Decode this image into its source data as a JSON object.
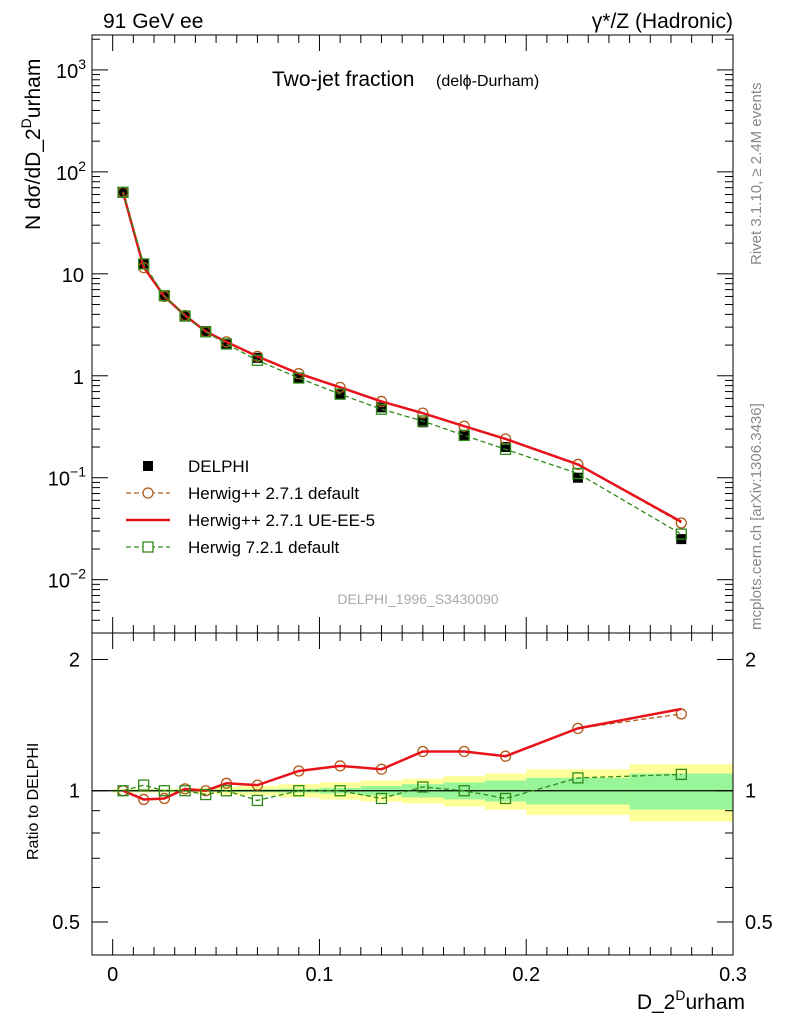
{
  "header": {
    "left_label": "91 GeV ee",
    "right_label": "γ*/Z (Hadronic)"
  },
  "side_labels": {
    "rivet": "Rivet 3.1.10, ≥ 2.4M events",
    "mcplots": "mcplots.cern.ch [arXiv:1306.3436]"
  },
  "chart_data": [
    {
      "type": "line",
      "title": "Two-jet fraction",
      "subtitle": "(delϕ-Durham)",
      "watermark": "DELPHI_1996_S3430090",
      "ylabel": "N dσ/dD_2^Durham",
      "ylabel_parts": {
        "main": "N dσ/dD_2",
        "sup": "D",
        "tail": "urham"
      },
      "y_scale": "log",
      "ylim": [
        0.003,
        2200
      ],
      "xlim": [
        -0.01,
        0.3
      ],
      "y_ticks": [
        {
          "value": 1000,
          "base": "10",
          "exp": "3"
        },
        {
          "value": 100,
          "base": "10",
          "exp": "2"
        },
        {
          "value": 10,
          "base": "10",
          "exp": ""
        },
        {
          "value": 1,
          "base": "1",
          "exp": ""
        },
        {
          "value": 0.1,
          "base": "10",
          "exp": "−1"
        },
        {
          "value": 0.01,
          "base": "10",
          "exp": "−2"
        }
      ],
      "legend_position": "lower-left",
      "series": [
        {
          "name": "DELPHI",
          "style": "data-markers",
          "color": "#000000",
          "x": [
            0.005,
            0.015,
            0.025,
            0.035,
            0.045,
            0.055,
            0.07,
            0.09,
            0.11,
            0.13,
            0.15,
            0.17,
            0.19,
            0.225,
            0.275
          ],
          "y": [
            63,
            12.5,
            6.1,
            3.85,
            2.75,
            2.05,
            1.5,
            0.95,
            0.66,
            0.49,
            0.35,
            0.26,
            0.2,
            0.1,
            0.025
          ]
        },
        {
          "name": "Herwig++ 2.7.1 default",
          "style": "dashed-circle",
          "color": "#b05a1a",
          "x": [
            0.005,
            0.015,
            0.025,
            0.035,
            0.045,
            0.055,
            0.07,
            0.09,
            0.11,
            0.13,
            0.15,
            0.17,
            0.19,
            0.225,
            0.275
          ],
          "y": [
            63,
            11.5,
            6.0,
            3.9,
            2.7,
            2.15,
            1.55,
            1.05,
            0.77,
            0.56,
            0.43,
            0.32,
            0.24,
            0.135,
            0.036
          ]
        },
        {
          "name": "Herwig++ 2.7.1 UE-EE-5",
          "style": "solid",
          "color": "#e8121a",
          "x": [
            0.005,
            0.015,
            0.025,
            0.035,
            0.045,
            0.055,
            0.07,
            0.09,
            0.11,
            0.13,
            0.15,
            0.17,
            0.19,
            0.225,
            0.275
          ],
          "y": [
            63,
            11.6,
            6.0,
            3.9,
            2.72,
            2.15,
            1.55,
            1.05,
            0.77,
            0.56,
            0.43,
            0.32,
            0.24,
            0.135,
            0.037
          ]
        },
        {
          "name": "Herwig 7.2.1 default",
          "style": "dashed-square",
          "color": "#2f8a1a",
          "x": [
            0.005,
            0.015,
            0.025,
            0.035,
            0.045,
            0.055,
            0.07,
            0.09,
            0.11,
            0.13,
            0.15,
            0.17,
            0.19,
            0.225,
            0.275
          ],
          "y": [
            63,
            12.5,
            6.1,
            3.85,
            2.7,
            2.05,
            1.42,
            0.95,
            0.66,
            0.47,
            0.36,
            0.26,
            0.19,
            0.11,
            0.028
          ]
        }
      ]
    },
    {
      "type": "line",
      "ylabel": "Ratio to DELPHI",
      "xlabel": "D_2^Durham",
      "xlabel_parts": {
        "main": "D_2",
        "sup": "D",
        "tail": "urham"
      },
      "y_scale": "log",
      "ylim": [
        0.42,
        2.3
      ],
      "xlim": [
        -0.01,
        0.3
      ],
      "x_ticks": [
        "0",
        "0.1",
        "0.2",
        "0.3"
      ],
      "x_tick_values": [
        0,
        0.1,
        0.2,
        0.3
      ],
      "y_ticks": [
        "0.5",
        "1",
        "2"
      ],
      "y_tick_values": [
        0.5,
        1,
        2
      ],
      "uncertainty_bands": [
        {
          "x_low": 0.0,
          "x_high": 0.01,
          "stat": [
            0.995,
            1.005
          ],
          "total": [
            0.99,
            1.01
          ]
        },
        {
          "x_low": 0.01,
          "x_high": 0.02,
          "stat": [
            0.995,
            1.005
          ],
          "total": [
            0.99,
            1.01
          ]
        },
        {
          "x_low": 0.02,
          "x_high": 0.03,
          "stat": [
            0.995,
            1.005
          ],
          "total": [
            0.99,
            1.01
          ]
        },
        {
          "x_low": 0.03,
          "x_high": 0.04,
          "stat": [
            0.995,
            1.005
          ],
          "total": [
            0.988,
            1.012
          ]
        },
        {
          "x_low": 0.04,
          "x_high": 0.05,
          "stat": [
            0.995,
            1.005
          ],
          "total": [
            0.985,
            1.015
          ]
        },
        {
          "x_low": 0.05,
          "x_high": 0.06,
          "stat": [
            0.994,
            1.006
          ],
          "total": [
            0.98,
            1.02
          ]
        },
        {
          "x_low": 0.06,
          "x_high": 0.08,
          "stat": [
            0.992,
            1.008
          ],
          "total": [
            0.975,
            1.025
          ]
        },
        {
          "x_low": 0.08,
          "x_high": 0.1,
          "stat": [
            0.99,
            1.01
          ],
          "total": [
            0.965,
            1.035
          ]
        },
        {
          "x_low": 0.1,
          "x_high": 0.12,
          "stat": [
            0.985,
            1.015
          ],
          "total": [
            0.955,
            1.045
          ]
        },
        {
          "x_low": 0.12,
          "x_high": 0.14,
          "stat": [
            0.975,
            1.025
          ],
          "total": [
            0.945,
            1.055
          ]
        },
        {
          "x_low": 0.14,
          "x_high": 0.16,
          "stat": [
            0.965,
            1.035
          ],
          "total": [
            0.935,
            1.065
          ]
        },
        {
          "x_low": 0.16,
          "x_high": 0.18,
          "stat": [
            0.955,
            1.045
          ],
          "total": [
            0.92,
            1.08
          ]
        },
        {
          "x_low": 0.18,
          "x_high": 0.2,
          "stat": [
            0.945,
            1.055
          ],
          "total": [
            0.905,
            1.095
          ]
        },
        {
          "x_low": 0.2,
          "x_high": 0.25,
          "stat": [
            0.93,
            1.07
          ],
          "total": [
            0.88,
            1.12
          ]
        },
        {
          "x_low": 0.25,
          "x_high": 0.3,
          "stat": [
            0.905,
            1.095
          ],
          "total": [
            0.85,
            1.15
          ]
        }
      ],
      "series": [
        {
          "name": "Herwig++ 2.7.1 default",
          "style": "dashed-circle",
          "color": "#b05a1a",
          "x": [
            0.005,
            0.015,
            0.025,
            0.035,
            0.045,
            0.055,
            0.07,
            0.09,
            0.11,
            0.13,
            0.15,
            0.17,
            0.19,
            0.225,
            0.275
          ],
          "y": [
            1.0,
            0.955,
            0.96,
            1.01,
            1.0,
            1.04,
            1.03,
            1.11,
            1.14,
            1.12,
            1.23,
            1.23,
            1.2,
            1.39,
            1.5
          ]
        },
        {
          "name": "Herwig++ 2.7.1 UE-EE-5",
          "style": "solid",
          "color": "#e8121a",
          "x": [
            0.005,
            0.015,
            0.025,
            0.035,
            0.045,
            0.055,
            0.07,
            0.09,
            0.11,
            0.13,
            0.15,
            0.17,
            0.19,
            0.225,
            0.275
          ],
          "y": [
            1.0,
            0.955,
            0.96,
            1.01,
            1.0,
            1.04,
            1.03,
            1.11,
            1.14,
            1.12,
            1.23,
            1.23,
            1.2,
            1.39,
            1.54
          ]
        },
        {
          "name": "Herwig 7.2.1 default",
          "style": "dashed-square",
          "color": "#2f8a1a",
          "x": [
            0.005,
            0.015,
            0.025,
            0.035,
            0.045,
            0.055,
            0.07,
            0.09,
            0.11,
            0.13,
            0.15,
            0.17,
            0.19,
            0.225,
            0.275
          ],
          "y": [
            1.0,
            1.03,
            1.0,
            1.0,
            0.98,
            1.0,
            0.95,
            1.0,
            1.0,
            0.96,
            1.02,
            1.0,
            0.96,
            1.07,
            1.09
          ]
        }
      ]
    }
  ]
}
